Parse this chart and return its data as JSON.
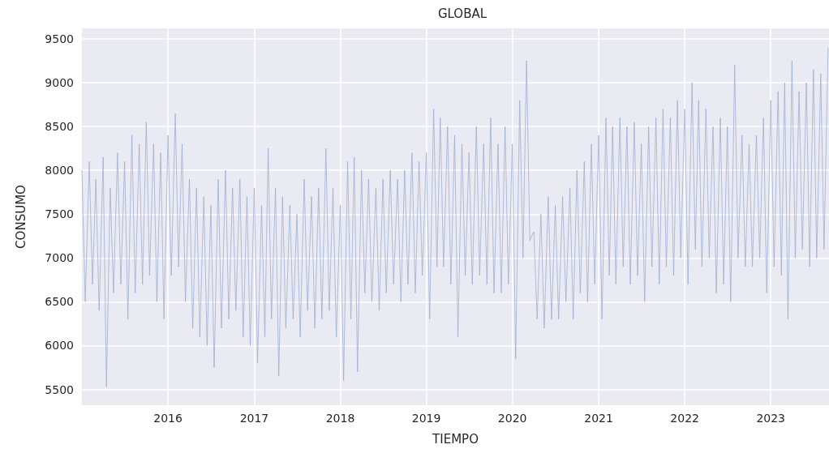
{
  "chart_data": {
    "type": "line",
    "title": "GLOBAL",
    "xlabel": "TIEMPO",
    "ylabel": "CONSUMO",
    "x": [
      "2015-01-01",
      "2015-01-15",
      "2015-02-01",
      "2015-02-15",
      "2015-03-01",
      "2015-03-15",
      "2015-04-01",
      "2015-04-15",
      "2015-05-01",
      "2015-05-15",
      "2015-06-01",
      "2015-06-15",
      "2015-07-01",
      "2015-07-15",
      "2015-08-01",
      "2015-08-15",
      "2015-09-01",
      "2015-09-15",
      "2015-10-01",
      "2015-10-15",
      "2015-11-01",
      "2015-11-15",
      "2015-12-01",
      "2015-12-15",
      "2016-01-01",
      "2016-01-15",
      "2016-02-01",
      "2016-02-15",
      "2016-03-01",
      "2016-03-15",
      "2016-04-01",
      "2016-04-15",
      "2016-05-01",
      "2016-05-15",
      "2016-06-01",
      "2016-06-15",
      "2016-07-01",
      "2016-07-15",
      "2016-08-01",
      "2016-08-15",
      "2016-09-01",
      "2016-09-15",
      "2016-10-01",
      "2016-10-15",
      "2016-11-01",
      "2016-11-15",
      "2016-12-01",
      "2016-12-15",
      "2017-01-01",
      "2017-01-15",
      "2017-02-01",
      "2017-02-15",
      "2017-03-01",
      "2017-03-15",
      "2017-04-01",
      "2017-04-15",
      "2017-05-01",
      "2017-05-15",
      "2017-06-01",
      "2017-06-15",
      "2017-07-01",
      "2017-07-15",
      "2017-08-01",
      "2017-08-15",
      "2017-09-01",
      "2017-09-15",
      "2017-10-01",
      "2017-10-15",
      "2017-11-01",
      "2017-11-15",
      "2017-12-01",
      "2017-12-15",
      "2018-01-01",
      "2018-01-15",
      "2018-02-01",
      "2018-02-15",
      "2018-03-01",
      "2018-03-15",
      "2018-04-01",
      "2018-04-15",
      "2018-05-01",
      "2018-05-15",
      "2018-06-01",
      "2018-06-15",
      "2018-07-01",
      "2018-07-15",
      "2018-08-01",
      "2018-08-15",
      "2018-09-01",
      "2018-09-15",
      "2018-10-01",
      "2018-10-15",
      "2018-11-01",
      "2018-11-15",
      "2018-12-01",
      "2018-12-15",
      "2019-01-01",
      "2019-01-15",
      "2019-02-01",
      "2019-02-15",
      "2019-03-01",
      "2019-03-15",
      "2019-04-01",
      "2019-04-15",
      "2019-05-01",
      "2019-05-15",
      "2019-06-01",
      "2019-06-15",
      "2019-07-01",
      "2019-07-15",
      "2019-08-01",
      "2019-08-15",
      "2019-09-01",
      "2019-09-15",
      "2019-10-01",
      "2019-10-15",
      "2019-11-01",
      "2019-11-15",
      "2019-12-01",
      "2019-12-15",
      "2020-01-01",
      "2020-01-15",
      "2020-02-01",
      "2020-02-15",
      "2020-03-01",
      "2020-03-15",
      "2020-04-01",
      "2020-04-15",
      "2020-05-01",
      "2020-05-15",
      "2020-06-01",
      "2020-06-15",
      "2020-07-01",
      "2020-07-15",
      "2020-08-01",
      "2020-08-15",
      "2020-09-01",
      "2020-09-15",
      "2020-10-01",
      "2020-10-15",
      "2020-11-01",
      "2020-11-15",
      "2020-12-01",
      "2020-12-15",
      "2021-01-01",
      "2021-01-15",
      "2021-02-01",
      "2021-02-15",
      "2021-03-01",
      "2021-03-15",
      "2021-04-01",
      "2021-04-15",
      "2021-05-01",
      "2021-05-15",
      "2021-06-01",
      "2021-06-15",
      "2021-07-01",
      "2021-07-15",
      "2021-08-01",
      "2021-08-15",
      "2021-09-01",
      "2021-09-15",
      "2021-10-01",
      "2021-10-15",
      "2021-11-01",
      "2021-11-15",
      "2021-12-01",
      "2021-12-15",
      "2022-01-01",
      "2022-01-15",
      "2022-02-01",
      "2022-02-15",
      "2022-03-01",
      "2022-03-15",
      "2022-04-01",
      "2022-04-15",
      "2022-05-01",
      "2022-05-15",
      "2022-06-01",
      "2022-06-15",
      "2022-07-01",
      "2022-07-15",
      "2022-08-01",
      "2022-08-15",
      "2022-09-01",
      "2022-09-15",
      "2022-10-01",
      "2022-10-15",
      "2022-11-01",
      "2022-11-15",
      "2022-12-01",
      "2022-12-15",
      "2023-01-01",
      "2023-01-15",
      "2023-02-01",
      "2023-02-15",
      "2023-03-01",
      "2023-03-15",
      "2023-04-01",
      "2023-04-15",
      "2023-05-01",
      "2023-05-15",
      "2023-06-01",
      "2023-06-15",
      "2023-07-01",
      "2023-07-15",
      "2023-08-01",
      "2023-08-15",
      "2023-09-01"
    ],
    "series": [
      {
        "color": "#9eafd3",
        "values": [
          8000,
          6500,
          8100,
          6700,
          7900,
          6400,
          8150,
          5530,
          7800,
          6600,
          8200,
          6700,
          8100,
          6300,
          8400,
          6600,
          8300,
          6700,
          8550,
          6800,
          8300,
          6500,
          8200,
          6300,
          8400,
          6800,
          8650,
          6900,
          8300,
          6500,
          7900,
          6200,
          7800,
          6100,
          7700,
          6000,
          7600,
          5750,
          7900,
          6200,
          8000,
          6300,
          7800,
          6400,
          7900,
          6100,
          7700,
          6000,
          7800,
          5800,
          7600,
          6100,
          8250,
          6300,
          7800,
          5650,
          7700,
          6200,
          7600,
          6300,
          7500,
          6100,
          7900,
          6400,
          7700,
          6200,
          7800,
          6300,
          8250,
          6400,
          7800,
          6100,
          7600,
          5600,
          8100,
          6300,
          8150,
          5700,
          8000,
          6600,
          7900,
          6500,
          7800,
          6400,
          7900,
          6600,
          8000,
          6700,
          7900,
          6500,
          8000,
          6700,
          8200,
          6600,
          8100,
          6800,
          8200,
          6300,
          8700,
          6900,
          8600,
          6900,
          8500,
          6700,
          8400,
          6100,
          8300,
          6800,
          8200,
          6700,
          8500,
          6800,
          8300,
          6700,
          8600,
          6600,
          8300,
          6600,
          8500,
          6700,
          8300,
          5850,
          8800,
          7000,
          9250,
          7200,
          7300,
          6300,
          7500,
          6200,
          7700,
          6300,
          7600,
          6300,
          7700,
          6500,
          7800,
          6300,
          8000,
          6600,
          8100,
          6500,
          8300,
          6700,
          8400,
          6300,
          8600,
          6800,
          8500,
          6700,
          8600,
          6900,
          8500,
          6700,
          8550,
          6800,
          8300,
          6500,
          8500,
          6900,
          8600,
          6700,
          8700,
          6900,
          8600,
          6800,
          8800,
          7000,
          8700,
          6700,
          9000,
          7100,
          8800,
          6900,
          8700,
          7000,
          8500,
          6600,
          8600,
          6700,
          8500,
          6500,
          9200,
          7000,
          8400,
          6900,
          8300,
          6900,
          8400,
          7000,
          8600,
          6600,
          8800,
          6900,
          8900,
          6800,
          9000,
          6300,
          9250,
          7000,
          8900,
          7100,
          9000,
          6900,
          9150,
          7000,
          9100,
          7100,
          9400
        ]
      }
    ],
    "xlim": [
      "2015-01-01",
      "2023-09-05"
    ],
    "xticks": [
      {
        "value": "2016-01-01",
        "label": "2016"
      },
      {
        "value": "2017-01-01",
        "label": "2017"
      },
      {
        "value": "2018-01-01",
        "label": "2018"
      },
      {
        "value": "2019-01-01",
        "label": "2019"
      },
      {
        "value": "2020-01-01",
        "label": "2020"
      },
      {
        "value": "2021-01-01",
        "label": "2021"
      },
      {
        "value": "2022-01-01",
        "label": "2022"
      },
      {
        "value": "2023-01-01",
        "label": "2023"
      }
    ],
    "ylim": [
      5320,
      9620
    ],
    "yticks": [
      5500,
      6000,
      6500,
      7000,
      7500,
      8000,
      8500,
      9000,
      9500
    ],
    "grid": true,
    "marker": "none",
    "line_style": "solid"
  }
}
